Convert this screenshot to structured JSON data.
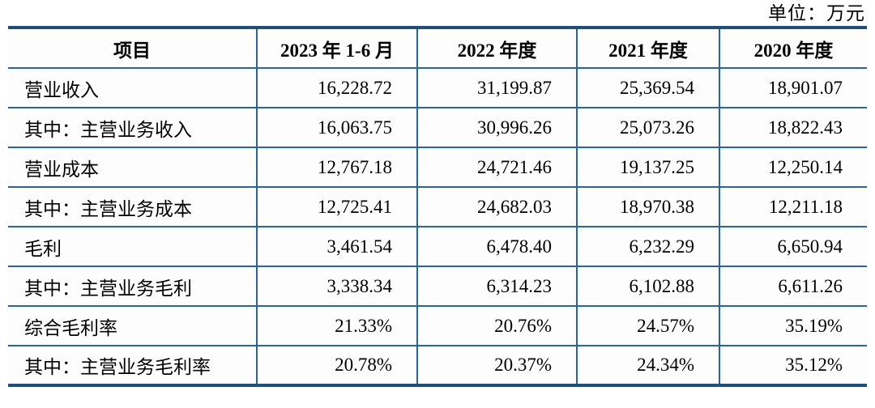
{
  "unit_label": "单位：万元",
  "colors": {
    "border_thick": "#1c4f80",
    "border_thin": "#2565a0",
    "text": "#000000",
    "background": "#ffffff"
  },
  "table": {
    "columns": [
      "项目",
      "2023 年 1-6 月",
      "2022 年度",
      "2021 年度",
      "2020 年度"
    ],
    "rows": [
      {
        "label": "营业收入",
        "values": [
          "16,228.72",
          "31,199.87",
          "25,369.54",
          "18,901.07"
        ]
      },
      {
        "label": "其中：主营业务收入",
        "values": [
          "16,063.75",
          "30,996.26",
          "25,073.26",
          "18,822.43"
        ]
      },
      {
        "label": "营业成本",
        "values": [
          "12,767.18",
          "24,721.46",
          "19,137.25",
          "12,250.14"
        ]
      },
      {
        "label": "其中：主营业务成本",
        "values": [
          "12,725.41",
          "24,682.03",
          "18,970.38",
          "12,211.18"
        ]
      },
      {
        "label": "毛利",
        "values": [
          "3,461.54",
          "6,478.40",
          "6,232.29",
          "6,650.94"
        ]
      },
      {
        "label": "其中：主营业务毛利",
        "values": [
          "3,338.34",
          "6,314.23",
          "6,102.88",
          "6,611.26"
        ]
      },
      {
        "label": "综合毛利率",
        "values": [
          "21.33%",
          "20.76%",
          "24.57%",
          "35.19%"
        ]
      },
      {
        "label": "其中：主营业务毛利率",
        "values": [
          "20.78%",
          "20.37%",
          "24.34%",
          "35.12%"
        ]
      }
    ]
  }
}
